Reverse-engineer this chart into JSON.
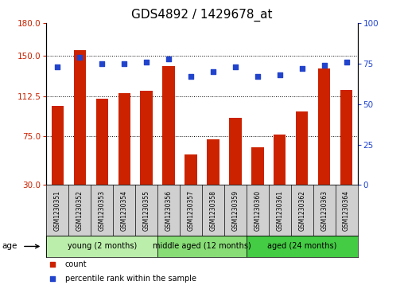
{
  "title": "GDS4892 / 1429678_at",
  "samples": [
    "GSM1230351",
    "GSM1230352",
    "GSM1230353",
    "GSM1230354",
    "GSM1230355",
    "GSM1230356",
    "GSM1230357",
    "GSM1230358",
    "GSM1230359",
    "GSM1230360",
    "GSM1230361",
    "GSM1230362",
    "GSM1230363",
    "GSM1230364"
  ],
  "counts": [
    103,
    155,
    110,
    115,
    117,
    140,
    58,
    72,
    92,
    65,
    77,
    98,
    138,
    118
  ],
  "percentiles": [
    73,
    79,
    75,
    75,
    76,
    78,
    67,
    70,
    73,
    67,
    68,
    72,
    74,
    76
  ],
  "ylim_left": [
    30,
    180
  ],
  "ylim_right": [
    0,
    100
  ],
  "yticks_left": [
    30,
    75,
    112.5,
    150,
    180
  ],
  "yticks_right": [
    0,
    25,
    50,
    75,
    100
  ],
  "bar_color": "#cc2200",
  "dot_color": "#2244cc",
  "bg_color": "#ffffff",
  "xtick_bg": "#d0d0d0",
  "groups": [
    {
      "label": "young (2 months)",
      "start": 0,
      "end": 5,
      "color": "#bbeeaa"
    },
    {
      "label": "middle aged (12 months)",
      "start": 5,
      "end": 9,
      "color": "#88dd77"
    },
    {
      "label": "aged (24 months)",
      "start": 9,
      "end": 14,
      "color": "#44cc44"
    }
  ],
  "legend_items": [
    {
      "label": "count",
      "color": "#cc2200"
    },
    {
      "label": "percentile rank within the sample",
      "color": "#2244cc"
    }
  ],
  "age_label": "age",
  "title_fontsize": 11,
  "tick_fontsize": 7.5,
  "sample_fontsize": 5.5,
  "group_fontsize": 7,
  "legend_fontsize": 7
}
